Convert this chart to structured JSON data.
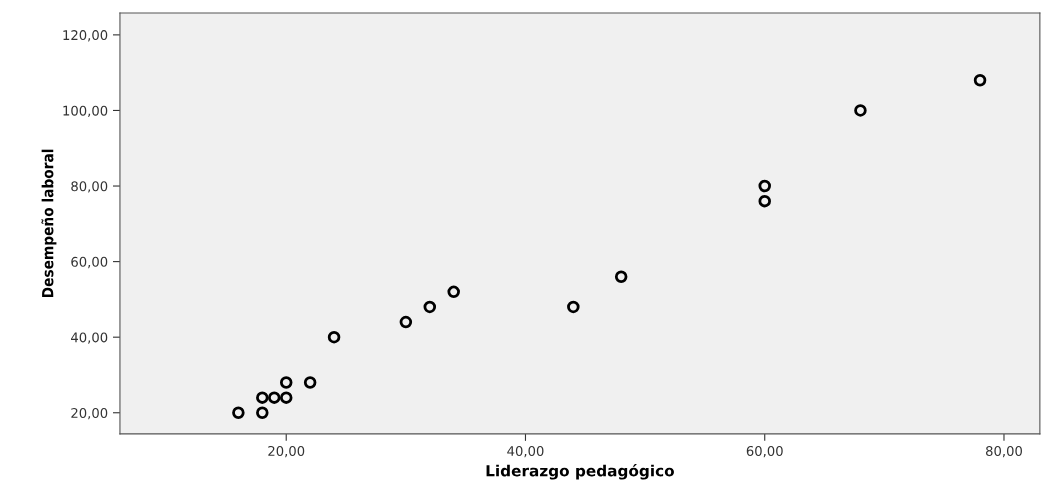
{
  "chart_data": {
    "type": "scatter",
    "xlabel": "Liderazgo pedagógico",
    "ylabel": "Desempeño laboral",
    "x": [
      16,
      18,
      18,
      19,
      20,
      20,
      22,
      24,
      30,
      32,
      34,
      44,
      48,
      60,
      60,
      68,
      78
    ],
    "series": [
      {
        "color": "#000000",
        "values": [
          20,
          20,
          24,
          24,
          24,
          28,
          28,
          40,
          44,
          48,
          52,
          48,
          56,
          76,
          80,
          100,
          108
        ]
      }
    ],
    "xlim": [
      6.1,
      83
    ],
    "ylim": [
      14.4,
      125.8
    ],
    "xticks": [
      {
        "value": 20,
        "label": "20,00"
      },
      {
        "value": 40,
        "label": "40,00"
      },
      {
        "value": 60,
        "label": "60,00"
      },
      {
        "value": 80,
        "label": "80,00"
      }
    ],
    "yticks": [
      {
        "value": 20,
        "label": "20,00"
      },
      {
        "value": 40,
        "label": "40,00"
      },
      {
        "value": 60,
        "label": "60,00"
      },
      {
        "value": 80,
        "label": "80,00"
      },
      {
        "value": 100,
        "label": "100,00"
      },
      {
        "value": 120,
        "label": "120,00"
      }
    ],
    "grid": false,
    "marker": "circle"
  }
}
